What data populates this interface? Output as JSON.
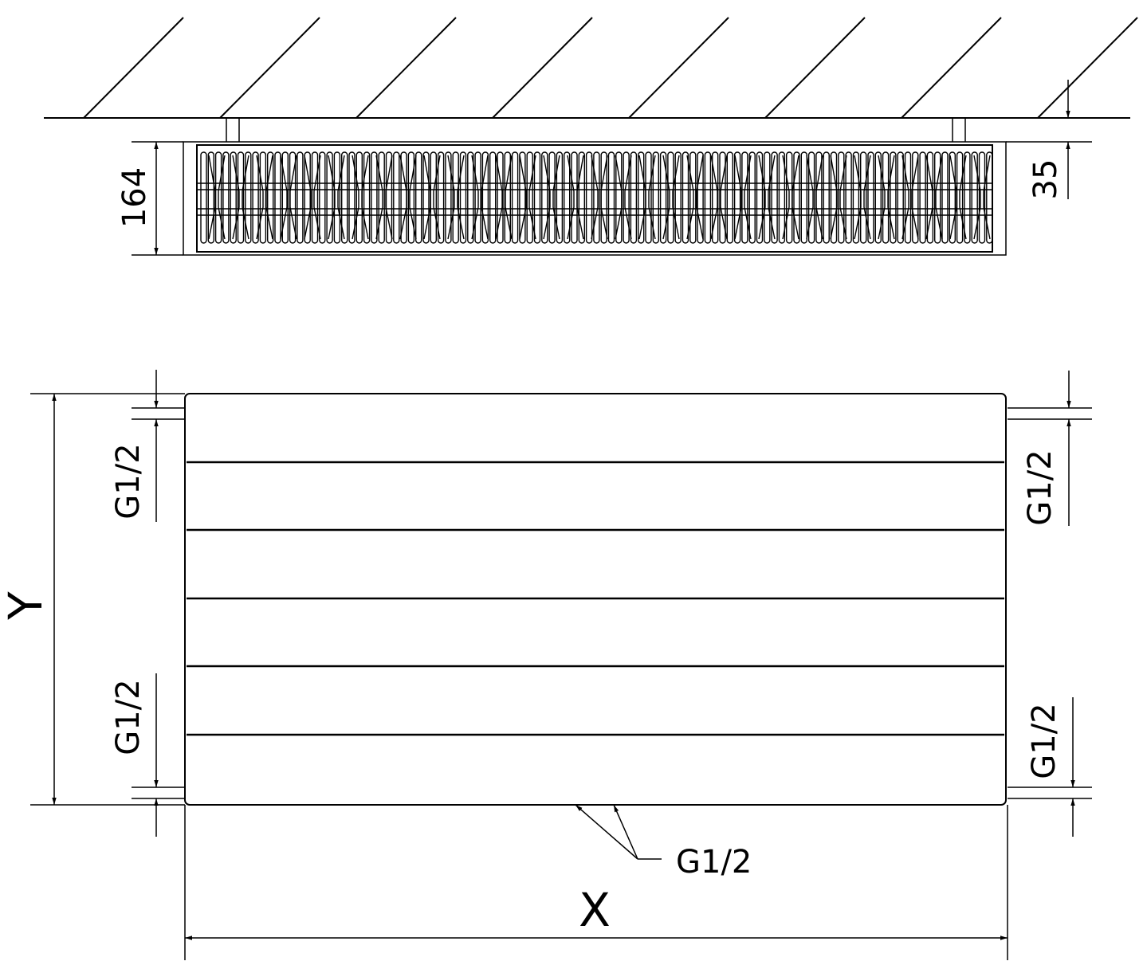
{
  "dimensions": {
    "depth": "164",
    "wall_gap": "35",
    "height_label": "Y",
    "width_label": "X",
    "connection_left_top": "G1/2",
    "connection_left_bottom": "G1/2",
    "connection_right_top": "G1/2",
    "connection_right_bottom": "G1/2",
    "connection_bottom": "G1/2"
  },
  "colors": {
    "line": "#000000",
    "background": "#ffffff"
  }
}
